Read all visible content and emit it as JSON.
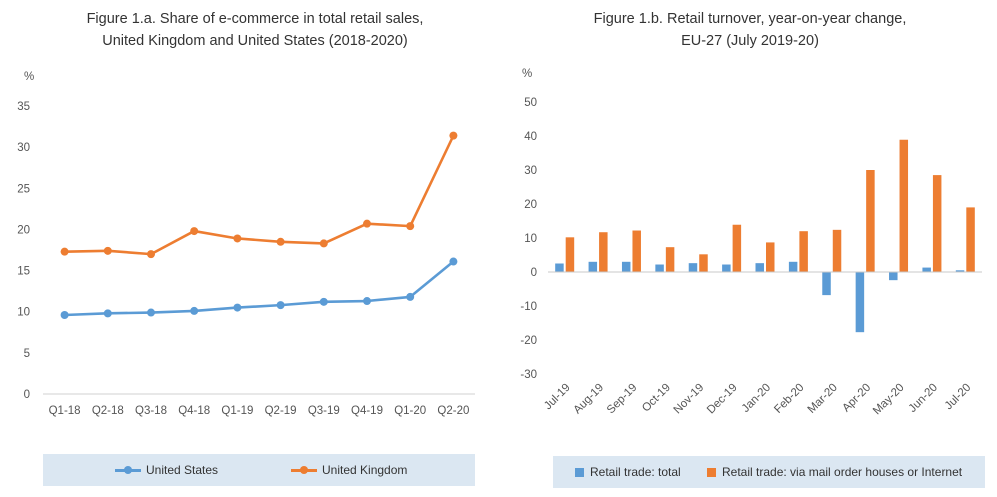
{
  "chart_data": [
    {
      "type": "line",
      "title": "Figure 1.a. Share of e-commerce in total retail sales,\nUnited Kingdom and United States  (2018-2020)",
      "ylabel": "%",
      "ylim": [
        0,
        35
      ],
      "yticks": [
        0,
        5,
        10,
        15,
        20,
        25,
        30,
        35
      ],
      "categories": [
        "Q1-18",
        "Q2-18",
        "Q3-18",
        "Q4-18",
        "Q1-19",
        "Q2-19",
        "Q3-19",
        "Q4-19",
        "Q1-20",
        "Q2-20"
      ],
      "series": [
        {
          "name": "United States",
          "color": "#5b9bd5",
          "values": [
            9.6,
            9.8,
            9.9,
            10.1,
            10.5,
            10.8,
            11.2,
            11.3,
            11.8,
            16.1
          ]
        },
        {
          "name": "United Kingdom",
          "color": "#ed7d31",
          "values": [
            17.3,
            17.4,
            17.0,
            19.8,
            18.9,
            18.5,
            18.3,
            20.7,
            20.4,
            31.4
          ]
        }
      ],
      "grid": false,
      "legend": "bottom"
    },
    {
      "type": "bar",
      "title": "Figure 1.b. Retail turnover, year-on-year change,\nEU-27 (July 2019-20)",
      "ylabel": "%",
      "ylim": [
        -30,
        50
      ],
      "yticks": [
        -30,
        -20,
        -10,
        0,
        10,
        20,
        30,
        40,
        50
      ],
      "categories": [
        "Jul-19",
        "Aug-19",
        "Sep-19",
        "Oct-19",
        "Nov-19",
        "Dec-19",
        "Jan-20",
        "Feb-20",
        "Mar-20",
        "Apr-20",
        "May-20",
        "Jun-20",
        "Jul-20"
      ],
      "series": [
        {
          "name": "Retail trade: total",
          "color": "#5b9bd5",
          "values": [
            2.5,
            3.0,
            3.0,
            2.2,
            2.6,
            2.2,
            2.6,
            3.0,
            -6.8,
            -17.7,
            -2.4,
            1.3,
            0.5
          ]
        },
        {
          "name": "Retail trade: via mail order houses or Internet",
          "color": "#ed7d31",
          "values": [
            10.2,
            11.7,
            12.2,
            7.3,
            5.2,
            13.9,
            8.7,
            12.0,
            12.4,
            30.0,
            38.9,
            28.5,
            19.0
          ]
        }
      ],
      "grid": false,
      "legend": "bottom"
    }
  ]
}
